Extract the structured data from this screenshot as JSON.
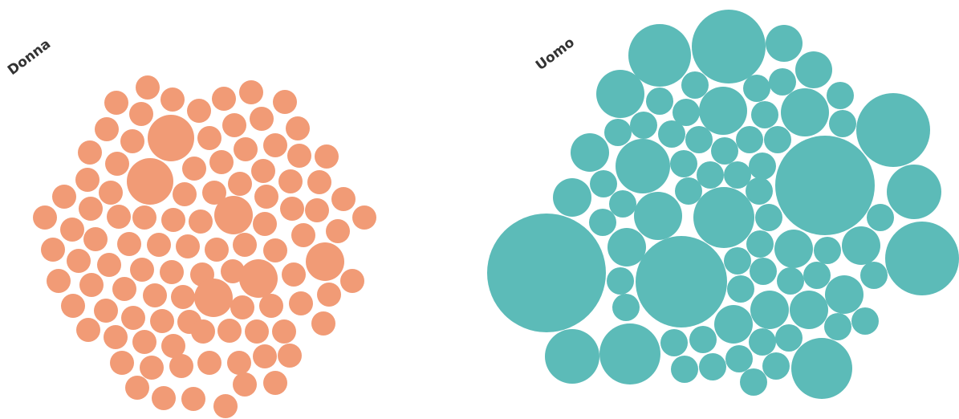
{
  "chart_data": {
    "type": "bubble",
    "groups": [
      {
        "name": "Donna",
        "color": "#F19B76",
        "bubbles": [
          [
            145,
            128,
            15
          ],
          [
            184,
            109,
            15
          ],
          [
            215,
            124,
            15
          ],
          [
            248,
            138,
            15
          ],
          [
            279,
            123,
            15
          ],
          [
            313,
            115,
            15
          ],
          [
            355,
            127,
            15
          ],
          [
            176,
            142,
            15
          ],
          [
            292,
            156,
            15
          ],
          [
            326,
            148,
            15
          ],
          [
            133,
            161,
            15
          ],
          [
            371,
            160,
            15
          ],
          [
            213,
            172,
            29
          ],
          [
            165,
            176,
            15
          ],
          [
            261,
            172,
            15
          ],
          [
            306,
            186,
            15
          ],
          [
            343,
            181,
            15
          ],
          [
            112,
            190,
            15
          ],
          [
            146,
            204,
            15
          ],
          [
            276,
            202,
            15
          ],
          [
            373,
            194,
            15
          ],
          [
            407,
            195,
            15
          ],
          [
            187,
            226,
            29
          ],
          [
            242,
            210,
            15
          ],
          [
            230,
            242,
            15
          ],
          [
            267,
            240,
            15
          ],
          [
            328,
            213,
            15
          ],
          [
            109,
            224,
            15
          ],
          [
            362,
            226,
            15
          ],
          [
            398,
            227,
            15
          ],
          [
            80,
            245,
            15
          ],
          [
            138,
            240,
            15
          ],
          [
            299,
            229,
            15
          ],
          [
            332,
            245,
            15
          ],
          [
            428,
            248,
            15
          ],
          [
            113,
            260,
            15
          ],
          [
            364,
            260,
            15
          ],
          [
            291,
            268,
            24
          ],
          [
            454,
            271,
            15
          ],
          [
            56,
            271,
            15
          ],
          [
            148,
            270,
            15
          ],
          [
            180,
            271,
            15
          ],
          [
            216,
            274,
            15
          ],
          [
            250,
            276,
            15
          ],
          [
            395,
            262,
            15
          ],
          [
            90,
            286,
            15
          ],
          [
            330,
            279,
            15
          ],
          [
            421,
            288,
            15
          ],
          [
            119,
            298,
            15
          ],
          [
            378,
            293,
            15
          ],
          [
            66,
            311,
            15
          ],
          [
            161,
            304,
            15
          ],
          [
            198,
            305,
            15
          ],
          [
            234,
            307,
            15
          ],
          [
            270,
            311,
            15
          ],
          [
            305,
            305,
            15
          ],
          [
            343,
            312,
            15
          ],
          [
            405,
            326,
            24
          ],
          [
            98,
            325,
            15
          ],
          [
            136,
            330,
            15
          ],
          [
            177,
            336,
            15
          ],
          [
            214,
            339,
            15
          ],
          [
            252,
            342,
            15
          ],
          [
            290,
            338,
            15
          ],
          [
            322,
            347,
            24
          ],
          [
            366,
            342,
            15
          ],
          [
            73,
            350,
            15
          ],
          [
            114,
            355,
            15
          ],
          [
            155,
            360,
            15
          ],
          [
            193,
            368,
            15
          ],
          [
            228,
            370,
            15
          ],
          [
            266,
            371,
            24
          ],
          [
            302,
            383,
            15
          ],
          [
            338,
            381,
            15
          ],
          [
            410,
            367,
            15
          ],
          [
            439,
            350,
            15
          ],
          [
            91,
            381,
            15
          ],
          [
            132,
            387,
            15
          ],
          [
            166,
            396,
            15
          ],
          [
            202,
            400,
            15
          ],
          [
            236,
            401,
            15
          ],
          [
            375,
            378,
            15
          ],
          [
            110,
            411,
            15
          ],
          [
            144,
            420,
            15
          ],
          [
            180,
            426,
            15
          ],
          [
            216,
            431,
            15
          ],
          [
            253,
            413,
            15
          ],
          [
            286,
            412,
            15
          ],
          [
            320,
            413,
            15
          ],
          [
            354,
            413,
            15
          ],
          [
            403,
            403,
            15
          ],
          [
            152,
            452,
            15
          ],
          [
            189,
            458,
            15
          ],
          [
            226,
            456,
            15
          ],
          [
            261,
            452,
            15
          ],
          [
            298,
            452,
            15
          ],
          [
            330,
            444,
            15
          ],
          [
            361,
            443,
            15
          ],
          [
            171,
            483,
            15
          ],
          [
            204,
            496,
            15
          ],
          [
            241,
            497,
            15
          ],
          [
            281,
            506,
            15
          ],
          [
            305,
            479,
            15
          ],
          [
            343,
            477,
            15
          ]
        ]
      },
      {
        "name": "Uomo",
        "color": "#5CBBB8",
        "bubbles": [
          [
            908,
            58,
            46
          ],
          [
            822,
            69,
            39
          ],
          [
            977,
            54,
            23
          ],
          [
            1014,
            87,
            23
          ],
          [
            773,
            117,
            30
          ],
          [
            866,
            106,
            17
          ],
          [
            943,
            110,
            17
          ],
          [
            975,
            102,
            17
          ],
          [
            1047,
            119,
            17
          ],
          [
            822,
            126,
            17
          ],
          [
            901,
            138,
            30
          ],
          [
            1003,
            140,
            30
          ],
          [
            855,
            140,
            17
          ],
          [
            953,
            143,
            17
          ],
          [
            1113,
            162,
            46
          ],
          [
            802,
            156,
            17
          ],
          [
            1050,
            154,
            17
          ],
          [
            770,
            165,
            17
          ],
          [
            837,
            167,
            17
          ],
          [
            871,
            174,
            17
          ],
          [
            934,
            174,
            17
          ],
          [
            969,
            174,
            17
          ],
          [
            735,
            190,
            24
          ],
          [
            801,
            207,
            34
          ],
          [
            903,
            188,
            17
          ],
          [
            852,
            204,
            17
          ],
          [
            950,
            207,
            17
          ],
          [
            1028,
            231,
            62
          ],
          [
            885,
            218,
            17
          ],
          [
            919,
            218,
            17
          ],
          [
            752,
            229,
            17
          ],
          [
            858,
            238,
            17
          ],
          [
            946,
            238,
            17
          ],
          [
            1139,
            239,
            34
          ],
          [
            713,
            246,
            24
          ],
          [
            776,
            254,
            17
          ],
          [
            820,
            269,
            30
          ],
          [
            902,
            271,
            38
          ],
          [
            958,
            271,
            17
          ],
          [
            1097,
            271,
            17
          ],
          [
            751,
            277,
            17
          ],
          [
            681,
            340,
            74
          ],
          [
            1149,
            322,
            46
          ],
          [
            781,
            308,
            24
          ],
          [
            947,
            304,
            17
          ],
          [
            989,
            310,
            24
          ],
          [
            1031,
            312,
            17
          ],
          [
            1073,
            306,
            24
          ],
          [
            849,
            351,
            57
          ],
          [
            919,
            325,
            17
          ],
          [
            951,
            338,
            17
          ],
          [
            1018,
            343,
            17
          ],
          [
            1089,
            343,
            17
          ],
          [
            773,
            350,
            17
          ],
          [
            985,
            350,
            17
          ],
          [
            923,
            360,
            17
          ],
          [
            1052,
            367,
            24
          ],
          [
            780,
            383,
            17
          ],
          [
            959,
            386,
            24
          ],
          [
            1008,
            386,
            24
          ],
          [
            914,
            404,
            24
          ],
          [
            1078,
            400,
            17
          ],
          [
            1044,
            407,
            17
          ],
          [
            713,
            444,
            34
          ],
          [
            785,
            441,
            38
          ],
          [
            840,
            427,
            17
          ],
          [
            876,
            423,
            17
          ],
          [
            950,
            426,
            17
          ],
          [
            983,
            421,
            17
          ],
          [
            921,
            447,
            17
          ],
          [
            888,
            457,
            17
          ],
          [
            853,
            460,
            17
          ],
          [
            967,
            456,
            17
          ],
          [
            1024,
            459,
            38
          ],
          [
            939,
            476,
            17
          ]
        ]
      }
    ]
  }
}
